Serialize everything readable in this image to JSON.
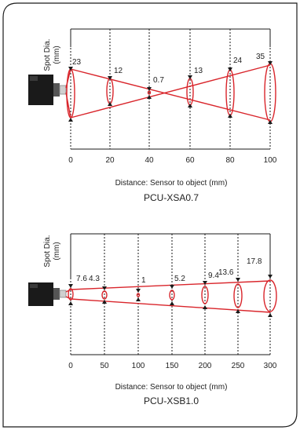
{
  "diagrams": [
    {
      "model": "PCU-XSA0.7",
      "y_axis_label_line1": "Spot Dia.",
      "y_axis_label_line2": "(mm)",
      "x_axis_label": "Distance: Sensor to object (mm)",
      "x_ticks": [
        "0",
        "20",
        "40",
        "60",
        "80",
        "100"
      ],
      "spot_labels": [
        "23",
        "12",
        "0.7",
        "13",
        "24",
        "35"
      ],
      "spot_diameters_mm": [
        23,
        12,
        0.7,
        13,
        24,
        35
      ]
    },
    {
      "model": "PCU-XSB1.0",
      "y_axis_label_line1": "Spot Dia.",
      "y_axis_label_line2": "(mm)",
      "x_axis_label": "Distance: Sensor to object (mm)",
      "x_ticks": [
        "0",
        "50",
        "100",
        "150",
        "200",
        "250",
        "300"
      ],
      "spot_labels": [
        "7.6",
        "4.3",
        "1",
        "5.2",
        "9.4",
        "13.6",
        "17.8"
      ],
      "spot_diameters_mm": [
        7.6,
        4.3,
        1,
        5.2,
        9.4,
        13.6,
        17.8
      ]
    }
  ],
  "colors": {
    "beam": "#d9252b",
    "frame": "#1a1a1a",
    "sensor": "#1a1a1a",
    "lens": "#cfcfcf"
  }
}
